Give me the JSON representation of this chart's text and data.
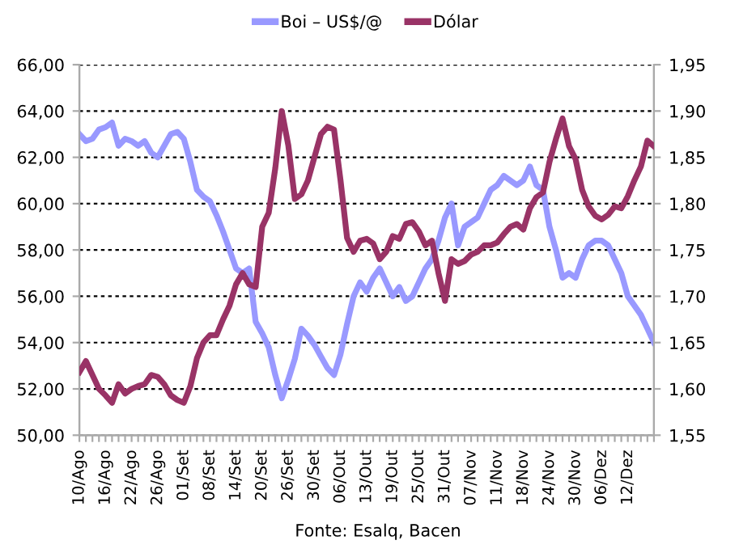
{
  "chart_data": {
    "type": "line",
    "categories": [
      "10/Ago",
      null,
      null,
      null,
      "16/Ago",
      null,
      null,
      null,
      "22/Ago",
      null,
      null,
      null,
      "26/Ago",
      null,
      null,
      null,
      "01/Set",
      null,
      null,
      null,
      "08/Set",
      null,
      null,
      null,
      "14/Set",
      null,
      null,
      null,
      "20/Set",
      null,
      null,
      null,
      "26/Set",
      null,
      null,
      null,
      "30/Set",
      null,
      null,
      null,
      "06/Out",
      null,
      null,
      null,
      "13/Out",
      null,
      null,
      null,
      "19/Out",
      null,
      null,
      null,
      "25/Out",
      null,
      null,
      null,
      "31/Out",
      null,
      null,
      null,
      "07/Nov",
      null,
      null,
      null,
      "11/Nov",
      null,
      null,
      null,
      "18/Nov",
      null,
      null,
      null,
      "24/Nov",
      null,
      null,
      null,
      "30/Nov",
      null,
      null,
      null,
      "06/Dez",
      null,
      null,
      null,
      "12/Dez",
      null,
      null,
      null,
      null
    ],
    "series": [
      {
        "name": "Boi – US$/@",
        "color": "#9999ff",
        "values": [
          63.0,
          62.7,
          62.8,
          63.2,
          63.3,
          63.5,
          62.5,
          62.8,
          62.7,
          62.5,
          62.7,
          62.2,
          62.0,
          62.5,
          63.0,
          63.1,
          62.8,
          61.8,
          60.6,
          60.3,
          60.1,
          59.5,
          58.8,
          58.0,
          57.2,
          57.0,
          57.2,
          54.9,
          54.4,
          53.8,
          52.6,
          51.6,
          52.4,
          53.3,
          54.6,
          54.3,
          53.9,
          53.4,
          52.9,
          52.6,
          53.5,
          54.8,
          56.0,
          56.6,
          56.2,
          56.8,
          57.2,
          56.6,
          56.0,
          56.4,
          55.8,
          56.0,
          56.6,
          57.2,
          57.6,
          58.4,
          59.4,
          60.0,
          58.2,
          59.0,
          59.2,
          59.4,
          60.0,
          60.6,
          60.8,
          61.2,
          61.0,
          60.8,
          61.0,
          61.6,
          60.8,
          60.6,
          59.0,
          58.0,
          56.8,
          57.0,
          56.8,
          57.6,
          58.2,
          58.4,
          58.4,
          58.2,
          57.6,
          57.0,
          56.0,
          55.6,
          55.2,
          54.6,
          54.0
        ]
      },
      {
        "name": "Dólar",
        "color": "#993366",
        "axis": "y2",
        "values": [
          1.618,
          1.63,
          1.615,
          1.6,
          1.593,
          1.585,
          1.605,
          1.595,
          1.6,
          1.603,
          1.605,
          1.615,
          1.613,
          1.605,
          1.593,
          1.588,
          1.585,
          1.603,
          1.633,
          1.65,
          1.658,
          1.658,
          1.675,
          1.69,
          1.713,
          1.725,
          1.713,
          1.71,
          1.775,
          1.79,
          1.838,
          1.9,
          1.863,
          1.805,
          1.81,
          1.825,
          1.85,
          1.875,
          1.883,
          1.88,
          1.825,
          1.763,
          1.748,
          1.76,
          1.762,
          1.757,
          1.74,
          1.748,
          1.765,
          1.762,
          1.778,
          1.78,
          1.77,
          1.755,
          1.76,
          1.725,
          1.695,
          1.74,
          1.735,
          1.738,
          1.745,
          1.748,
          1.755,
          1.755,
          1.758,
          1.767,
          1.775,
          1.778,
          1.772,
          1.795,
          1.807,
          1.812,
          1.845,
          1.87,
          1.892,
          1.862,
          1.848,
          1.815,
          1.797,
          1.787,
          1.783,
          1.788,
          1.797,
          1.795,
          1.808,
          1.825,
          1.84,
          1.868,
          1.862
        ]
      }
    ],
    "ylim": [
      50,
      66
    ],
    "yticks": [
      {
        "value": 50,
        "label": "50,00"
      },
      {
        "value": 52,
        "label": "52,00"
      },
      {
        "value": 54,
        "label": "54,00"
      },
      {
        "value": 56,
        "label": "56,00"
      },
      {
        "value": 58,
        "label": "58,00"
      },
      {
        "value": 60,
        "label": "60,00"
      },
      {
        "value": 62,
        "label": "62,00"
      },
      {
        "value": 64,
        "label": "64,00"
      },
      {
        "value": 66,
        "label": "66,00"
      }
    ],
    "y2lim": [
      1.55,
      1.95
    ],
    "y2ticks": [
      {
        "value": 1.55,
        "label": "1,55"
      },
      {
        "value": 1.6,
        "label": "1,60"
      },
      {
        "value": 1.65,
        "label": "1,65"
      },
      {
        "value": 1.7,
        "label": "1,70"
      },
      {
        "value": 1.75,
        "label": "1,75"
      },
      {
        "value": 1.8,
        "label": "1,80"
      },
      {
        "value": 1.85,
        "label": "1,85"
      },
      {
        "value": 1.9,
        "label": "1,90"
      },
      {
        "value": 1.95,
        "label": "1,95"
      }
    ],
    "grid": "y",
    "legend": "top",
    "marker": "none",
    "line_style": "solid",
    "annotations": [
      "Fonte: Esalq, Bacen"
    ]
  }
}
